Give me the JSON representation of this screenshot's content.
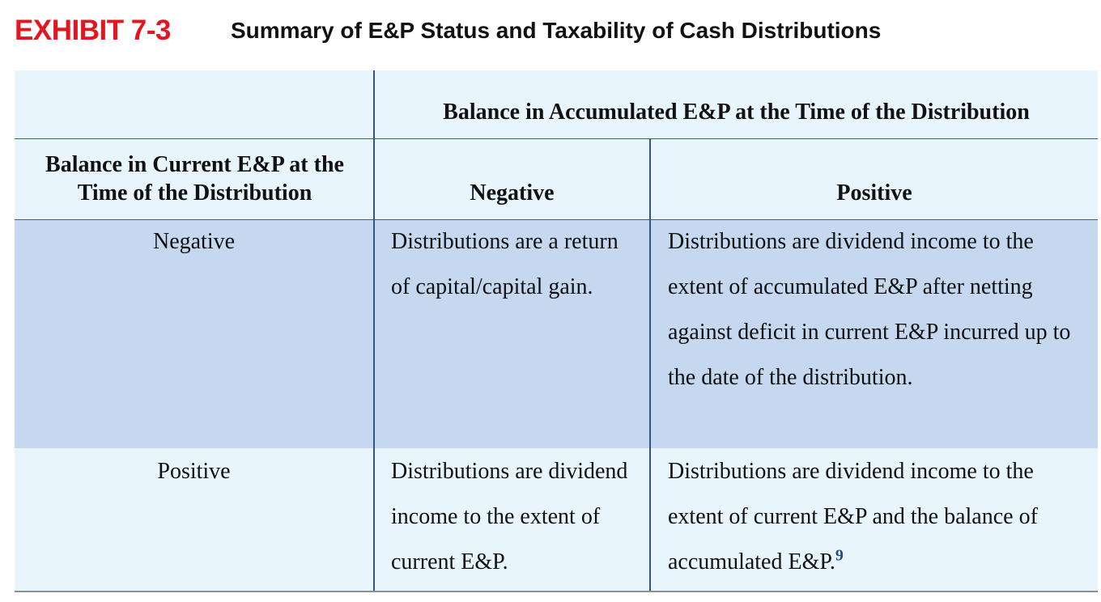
{
  "exhibit": {
    "label": "EXHIBIT 7-3",
    "title": "Summary of E&P Status and Taxability of Cash Distributions"
  },
  "table": {
    "accumulated_header": "Balance in Accumulated E&P at the Time of the Distribution",
    "current_header": "Balance in Current E&P at the Time of the Distribution",
    "columns": [
      "Negative",
      "Positive"
    ],
    "rows": [
      {
        "label": "Negative",
        "negative": "Distributions are a return of capital/capital gain.",
        "positive": "Distributions are dividend income to the extent of accumulated E&P after netting against deficit in current E&P incurred up to the date of the distribution."
      },
      {
        "label": "Positive",
        "negative": "Distributions are dividend income to the extent of current E&P.",
        "positive": "Distributions are dividend income to the extent of current E&P and the balance of accumulated E&P.",
        "positive_footnote": "9"
      }
    ]
  },
  "colors": {
    "exhibit_label": "#e3151f",
    "table_background": "#e9f5fc",
    "negative_row_band": "#c5d8ef",
    "rule_lines": "#2f5782",
    "footnote": "#1f4d86"
  }
}
